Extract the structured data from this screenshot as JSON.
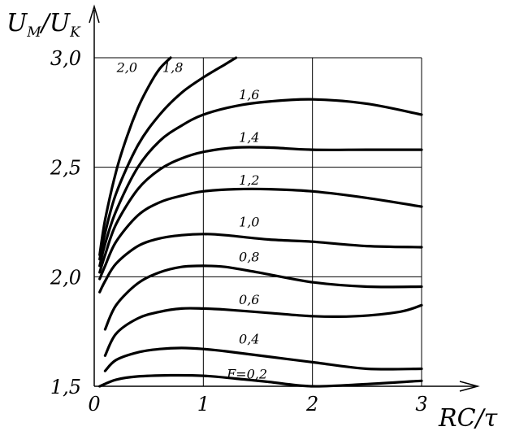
{
  "chart_data": {
    "type": "line",
    "xlabel": "RC/τ",
    "ylabel": "U",
    "ylabel_sub_1": "M",
    "ylabel_sep": "/U",
    "ylabel_sub_2": "K",
    "xlim": [
      0,
      3
    ],
    "ylim": [
      1.5,
      3.0
    ],
    "x_ticks": [
      "0",
      "1",
      "2",
      "3"
    ],
    "y_ticks": [
      "1,5",
      "2,0",
      "2,5",
      "3,0"
    ],
    "x_tick_values": [
      0,
      1,
      2,
      3
    ],
    "y_tick_values": [
      1.5,
      2.0,
      2.5,
      3.0
    ],
    "grid": true,
    "series": [
      {
        "name": "F=0,2",
        "label": "F=0,2",
        "x": [
          0.05,
          0.2,
          0.4,
          0.7,
          1.0,
          1.3,
          1.6,
          2.0,
          2.5,
          3.0
        ],
        "y": [
          1.5,
          1.53,
          1.545,
          1.55,
          1.548,
          1.535,
          1.52,
          1.5,
          1.51,
          1.525
        ]
      },
      {
        "name": "0,4",
        "label": "0,4",
        "x": [
          0.1,
          0.2,
          0.4,
          0.6,
          0.8,
          1.0,
          1.2,
          1.6,
          2.0,
          2.5,
          3.0
        ],
        "y": [
          1.57,
          1.62,
          1.655,
          1.67,
          1.675,
          1.67,
          1.66,
          1.635,
          1.61,
          1.58,
          1.58
        ]
      },
      {
        "name": "0,6",
        "label": "0,6",
        "x": [
          0.1,
          0.2,
          0.4,
          0.6,
          0.8,
          1.0,
          1.2,
          1.6,
          2.0,
          2.4,
          2.8,
          3.0
        ],
        "y": [
          1.64,
          1.74,
          1.81,
          1.84,
          1.855,
          1.855,
          1.85,
          1.835,
          1.82,
          1.82,
          1.84,
          1.87
        ]
      },
      {
        "name": "0,8",
        "label": "0,8",
        "x": [
          0.1,
          0.2,
          0.4,
          0.6,
          0.8,
          1.0,
          1.2,
          1.5,
          2.0,
          2.5,
          3.0
        ],
        "y": [
          1.76,
          1.87,
          1.97,
          2.02,
          2.045,
          2.05,
          2.045,
          2.02,
          1.975,
          1.955,
          1.955
        ]
      },
      {
        "name": "1,0",
        "label": "1,0",
        "x": [
          0.05,
          0.1,
          0.2,
          0.4,
          0.6,
          0.8,
          1.0,
          1.2,
          1.6,
          2.0,
          2.5,
          3.0
        ],
        "y": [
          1.93,
          1.98,
          2.06,
          2.14,
          2.175,
          2.19,
          2.195,
          2.19,
          2.17,
          2.16,
          2.14,
          2.135
        ]
      },
      {
        "name": "1,2",
        "label": "1,2",
        "x": [
          0.05,
          0.1,
          0.2,
          0.4,
          0.6,
          0.8,
          1.0,
          1.3,
          1.6,
          2.0,
          2.5,
          3.0
        ],
        "y": [
          1.99,
          2.05,
          2.16,
          2.28,
          2.34,
          2.37,
          2.39,
          2.4,
          2.4,
          2.39,
          2.36,
          2.32
        ]
      },
      {
        "name": "1,4",
        "label": "1,4",
        "x": [
          0.05,
          0.1,
          0.2,
          0.4,
          0.6,
          0.8,
          1.0,
          1.3,
          1.6,
          2.0,
          2.5,
          3.0
        ],
        "y": [
          2.02,
          2.1,
          2.24,
          2.4,
          2.49,
          2.54,
          2.57,
          2.59,
          2.59,
          2.58,
          2.58,
          2.58
        ]
      },
      {
        "name": "1,6",
        "label": "1,6",
        "x": [
          0.05,
          0.1,
          0.2,
          0.4,
          0.6,
          0.8,
          1.0,
          1.3,
          1.6,
          2.0,
          2.5,
          3.0
        ],
        "y": [
          2.05,
          2.15,
          2.3,
          2.5,
          2.62,
          2.69,
          2.74,
          2.78,
          2.8,
          2.81,
          2.79,
          2.74
        ]
      },
      {
        "name": "1,8",
        "label": "1,8",
        "x": [
          0.05,
          0.1,
          0.2,
          0.4,
          0.6,
          0.8,
          1.0,
          1.2,
          1.3
        ],
        "y": [
          2.08,
          2.2,
          2.38,
          2.6,
          2.74,
          2.84,
          2.91,
          2.97,
          3.0
        ]
      },
      {
        "name": "2,0",
        "label": "2,0",
        "x": [
          0.05,
          0.1,
          0.2,
          0.3,
          0.4,
          0.5,
          0.6,
          0.7
        ],
        "y": [
          2.1,
          2.26,
          2.48,
          2.64,
          2.77,
          2.87,
          2.95,
          3.0
        ]
      }
    ]
  }
}
